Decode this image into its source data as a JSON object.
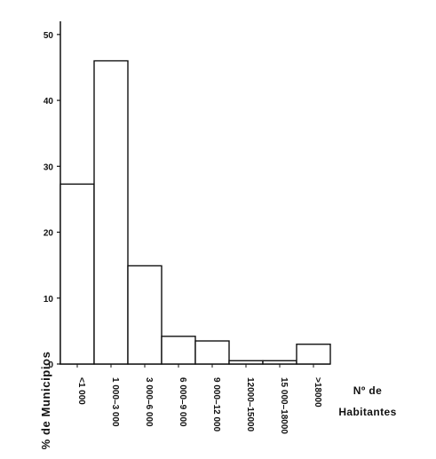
{
  "chart_data": {
    "type": "bar",
    "title": "",
    "xlabel": "Nº de Habitantes",
    "ylabel": "% de Municipios",
    "categories": [
      "<1 000",
      "1 000–3 000",
      "3 000–6 000",
      "6 000–9 000",
      "9 000–12 000",
      "12000–15000",
      "15 000–18000",
      ">18000"
    ],
    "values": [
      27.3,
      46.0,
      14.9,
      4.2,
      3.5,
      0.5,
      0.5,
      3.0
    ],
    "yticks": [
      "0",
      "10",
      "20",
      "30",
      "40",
      "50"
    ],
    "ylim": [
      0,
      52
    ],
    "grid": false,
    "bar_fill": "#ffffff",
    "stroke_color": "#111111",
    "text_color": "#111111",
    "page_background": "#ffffff"
  }
}
